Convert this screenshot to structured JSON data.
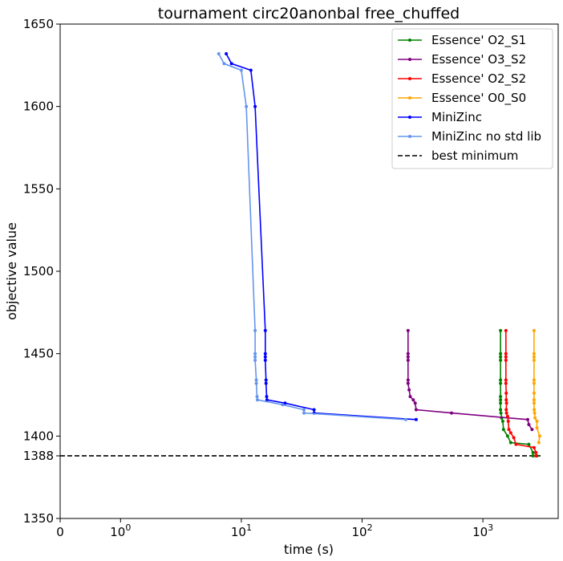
{
  "chart_data": {
    "type": "line",
    "title": "tournament circ20anonbal free_chuffed",
    "xlabel": "time (s)",
    "ylabel": "objective value",
    "x_scale": "symlog",
    "xlim": [
      0,
      4200
    ],
    "ylim": [
      1350,
      1650
    ],
    "x_ticks": [
      {
        "value": 0,
        "label": "0"
      },
      {
        "value": 1,
        "label": "10",
        "exp": "0"
      },
      {
        "value": 10,
        "label": "10",
        "exp": "1"
      },
      {
        "value": 100,
        "label": "10",
        "exp": "2"
      },
      {
        "value": 1000,
        "label": "10",
        "exp": "3"
      }
    ],
    "y_ticks": [
      1350,
      1388,
      1400,
      1450,
      1500,
      1550,
      1600,
      1650
    ],
    "grid": false,
    "legend_position": "top-right",
    "best_minimum": {
      "name": "best minimum",
      "value": 1388,
      "color": "#000000"
    },
    "series": [
      {
        "name": "Essence' O2_S1",
        "color": "#008000",
        "points": [
          [
            1400,
            1464
          ],
          [
            1400,
            1450
          ],
          [
            1400,
            1448
          ],
          [
            1400,
            1446
          ],
          [
            1400,
            1434
          ],
          [
            1400,
            1432
          ],
          [
            1400,
            1424
          ],
          [
            1400,
            1422
          ],
          [
            1400,
            1420
          ],
          [
            1400,
            1416
          ],
          [
            1410,
            1414
          ],
          [
            1430,
            1411
          ],
          [
            1460,
            1409
          ],
          [
            1480,
            1404
          ],
          [
            1600,
            1400
          ],
          [
            1700,
            1396
          ],
          [
            2400,
            1395
          ],
          [
            2600,
            1390
          ],
          [
            2600,
            1388
          ],
          [
            2800,
            1388
          ]
        ]
      },
      {
        "name": "Essence' O3_S2",
        "color": "#800080",
        "points": [
          [
            240,
            1464
          ],
          [
            240,
            1450
          ],
          [
            240,
            1448
          ],
          [
            240,
            1446
          ],
          [
            240,
            1434
          ],
          [
            240,
            1432
          ],
          [
            245,
            1428
          ],
          [
            250,
            1424
          ],
          [
            265,
            1422
          ],
          [
            275,
            1420
          ],
          [
            280,
            1416
          ],
          [
            550,
            1414
          ],
          [
            2350,
            1410
          ],
          [
            2400,
            1407
          ],
          [
            2550,
            1404
          ]
        ]
      },
      {
        "name": "Essence' O2_S2",
        "color": "#ff0000",
        "points": [
          [
            1550,
            1464
          ],
          [
            1550,
            1450
          ],
          [
            1550,
            1448
          ],
          [
            1550,
            1446
          ],
          [
            1550,
            1434
          ],
          [
            1550,
            1432
          ],
          [
            1560,
            1426
          ],
          [
            1560,
            1422
          ],
          [
            1570,
            1420
          ],
          [
            1560,
            1416
          ],
          [
            1570,
            1414
          ],
          [
            1600,
            1412
          ],
          [
            1620,
            1409
          ],
          [
            1640,
            1404
          ],
          [
            1700,
            1402
          ],
          [
            1800,
            1399
          ],
          [
            1880,
            1395
          ],
          [
            2650,
            1393
          ],
          [
            2750,
            1390
          ],
          [
            2750,
            1388
          ]
        ]
      },
      {
        "name": "Essence' O0_S0",
        "color": "#ffa500",
        "points": [
          [
            2650,
            1464
          ],
          [
            2650,
            1450
          ],
          [
            2650,
            1448
          ],
          [
            2650,
            1446
          ],
          [
            2650,
            1434
          ],
          [
            2650,
            1432
          ],
          [
            2650,
            1426
          ],
          [
            2650,
            1422
          ],
          [
            2650,
            1420
          ],
          [
            2660,
            1416
          ],
          [
            2680,
            1414
          ],
          [
            2700,
            1411
          ],
          [
            2800,
            1409
          ],
          [
            2800,
            1405
          ],
          [
            2950,
            1400
          ],
          [
            2900,
            1396
          ]
        ]
      },
      {
        "name": "MiniZinc",
        "color": "#0000ff",
        "points": [
          [
            7.5,
            1632
          ],
          [
            8.3,
            1626
          ],
          [
            12,
            1622
          ],
          [
            13,
            1600
          ],
          [
            15.8,
            1464
          ],
          [
            15.8,
            1450
          ],
          [
            15.8,
            1448
          ],
          [
            15.8,
            1446
          ],
          [
            16,
            1434
          ],
          [
            16,
            1432
          ],
          [
            16.2,
            1424
          ],
          [
            16.3,
            1422
          ],
          [
            23,
            1420
          ],
          [
            40,
            1416
          ],
          [
            40,
            1414
          ],
          [
            280,
            1410
          ]
        ]
      },
      {
        "name": "MiniZinc no std lib",
        "color": "#6495ed",
        "points": [
          [
            6.5,
            1632
          ],
          [
            7.2,
            1626
          ],
          [
            10,
            1622
          ],
          [
            11,
            1600
          ],
          [
            13,
            1464
          ],
          [
            13,
            1450
          ],
          [
            13,
            1448
          ],
          [
            13,
            1446
          ],
          [
            13.3,
            1434
          ],
          [
            13.3,
            1432
          ],
          [
            13.5,
            1424
          ],
          [
            13.6,
            1422
          ],
          [
            22,
            1419
          ],
          [
            33,
            1416
          ],
          [
            33,
            1414
          ],
          [
            230,
            1410
          ]
        ]
      }
    ]
  }
}
